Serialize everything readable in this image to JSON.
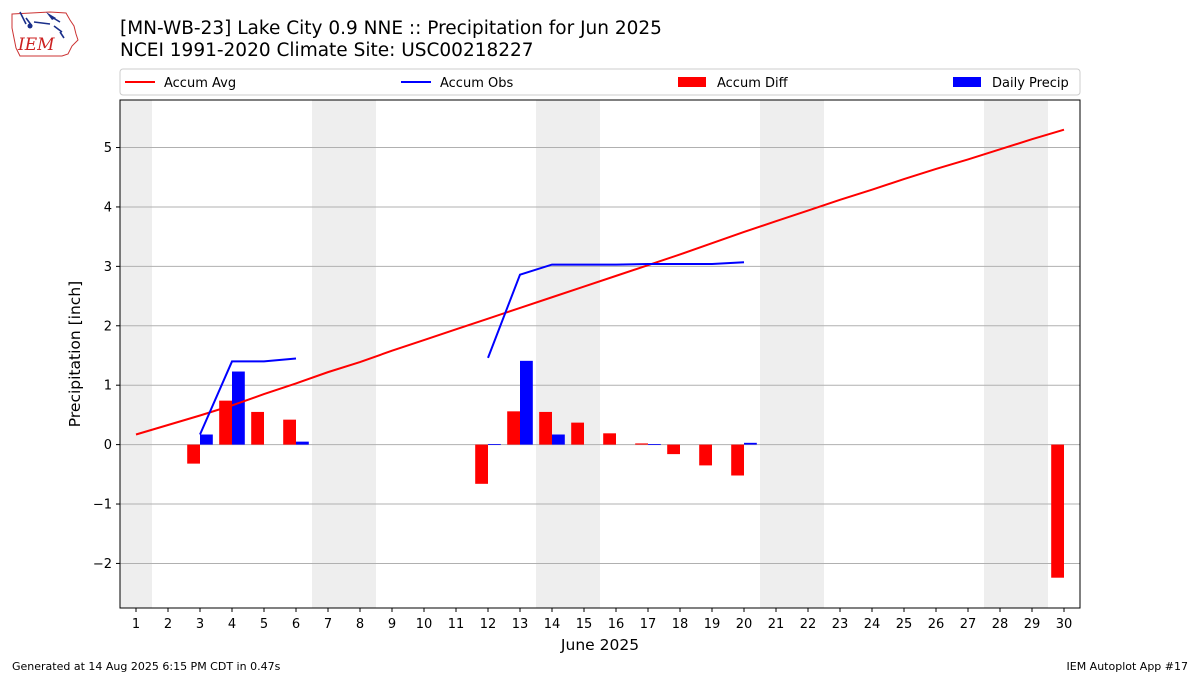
{
  "header": {
    "title_line1": "[MN-WB-23] Lake City 0.9 NNE :: Precipitation for Jun 2025",
    "title_line2": "NCEI 1991-2020 Climate Site: USC00218227",
    "logo_text": "IEM"
  },
  "footer": {
    "generated": "Generated at 14 Aug 2025 6:15 PM CDT in 0.47s",
    "app": "IEM Autoplot App #17"
  },
  "colors": {
    "accum_avg": "#ff0000",
    "accum_obs": "#0000ff",
    "accum_diff": "#ff0000",
    "daily_precip": "#0000ff",
    "weekend_shade": "#eeeeee",
    "grid": "#b0b0b0"
  },
  "chart_data": {
    "type": "bar",
    "title": "[MN-WB-23] Lake City 0.9 NNE :: Precipitation for Jun 2025",
    "subtitle": "NCEI 1991-2020 Climate Site: USC00218227",
    "xlabel": "June 2025",
    "ylabel": "Precipitation [inch]",
    "xlim": [
      0.5,
      30.5
    ],
    "ylim": [
      -2.75,
      5.8
    ],
    "yticks": [
      -2,
      -1,
      0,
      1,
      2,
      3,
      4,
      5
    ],
    "ytick_labels": [
      "−2",
      "−1",
      "0",
      "1",
      "2",
      "3",
      "4",
      "5"
    ],
    "xticks": [
      1,
      2,
      3,
      4,
      5,
      6,
      7,
      8,
      9,
      10,
      11,
      12,
      13,
      14,
      15,
      16,
      17,
      18,
      19,
      20,
      21,
      22,
      23,
      24,
      25,
      26,
      27,
      28,
      29,
      30
    ],
    "grid": "horizontal",
    "legend_position": "top (above plot, single row)",
    "legend": [
      "Accum Avg",
      "Accum Obs",
      "Accum Diff",
      "Daily Precip"
    ],
    "weekend_days": [
      1,
      7,
      8,
      14,
      15,
      21,
      22,
      28,
      29
    ],
    "series": [
      {
        "name": "Accum Avg",
        "kind": "line",
        "x": [
          1,
          2,
          3,
          4,
          5,
          6,
          7,
          8,
          9,
          10,
          11,
          12,
          13,
          14,
          15,
          16,
          17,
          18,
          19,
          20,
          21,
          22,
          23,
          24,
          25,
          26,
          27,
          28,
          29,
          30
        ],
        "values": [
          0.17,
          0.33,
          0.49,
          0.66,
          0.85,
          1.03,
          1.22,
          1.39,
          1.58,
          1.76,
          1.94,
          2.12,
          2.3,
          2.48,
          2.66,
          2.84,
          3.02,
          3.2,
          3.39,
          3.58,
          3.76,
          3.94,
          4.12,
          4.29,
          4.47,
          4.64,
          4.8,
          4.97,
          5.14,
          5.3
        ]
      },
      {
        "name": "Accum Obs",
        "kind": "line",
        "segments": [
          {
            "x": [
              3,
              4,
              5,
              6
            ],
            "values": [
              0.17,
              1.4,
              1.4,
              1.45
            ]
          },
          {
            "x": [
              12,
              13,
              14,
              15,
              16,
              17,
              18,
              19,
              20
            ],
            "values": [
              1.46,
              2.86,
              3.03,
              3.03,
              3.03,
              3.04,
              3.04,
              3.04,
              3.07
            ]
          }
        ]
      },
      {
        "name": "Accum Diff",
        "kind": "bar",
        "x": [
          3,
          4,
          5,
          6,
          12,
          13,
          14,
          15,
          16,
          17,
          18,
          19,
          20,
          30
        ],
        "values": [
          -0.32,
          0.74,
          0.55,
          0.42,
          -0.66,
          0.56,
          0.55,
          0.37,
          0.19,
          0.02,
          -0.16,
          -0.35,
          -0.52,
          -2.24
        ]
      },
      {
        "name": "Daily Precip",
        "kind": "bar",
        "x": [
          3,
          4,
          6,
          12,
          13,
          14,
          17,
          20
        ],
        "values": [
          0.17,
          1.23,
          0.05,
          0.01,
          1.41,
          0.17,
          0.01,
          0.03
        ]
      }
    ]
  }
}
